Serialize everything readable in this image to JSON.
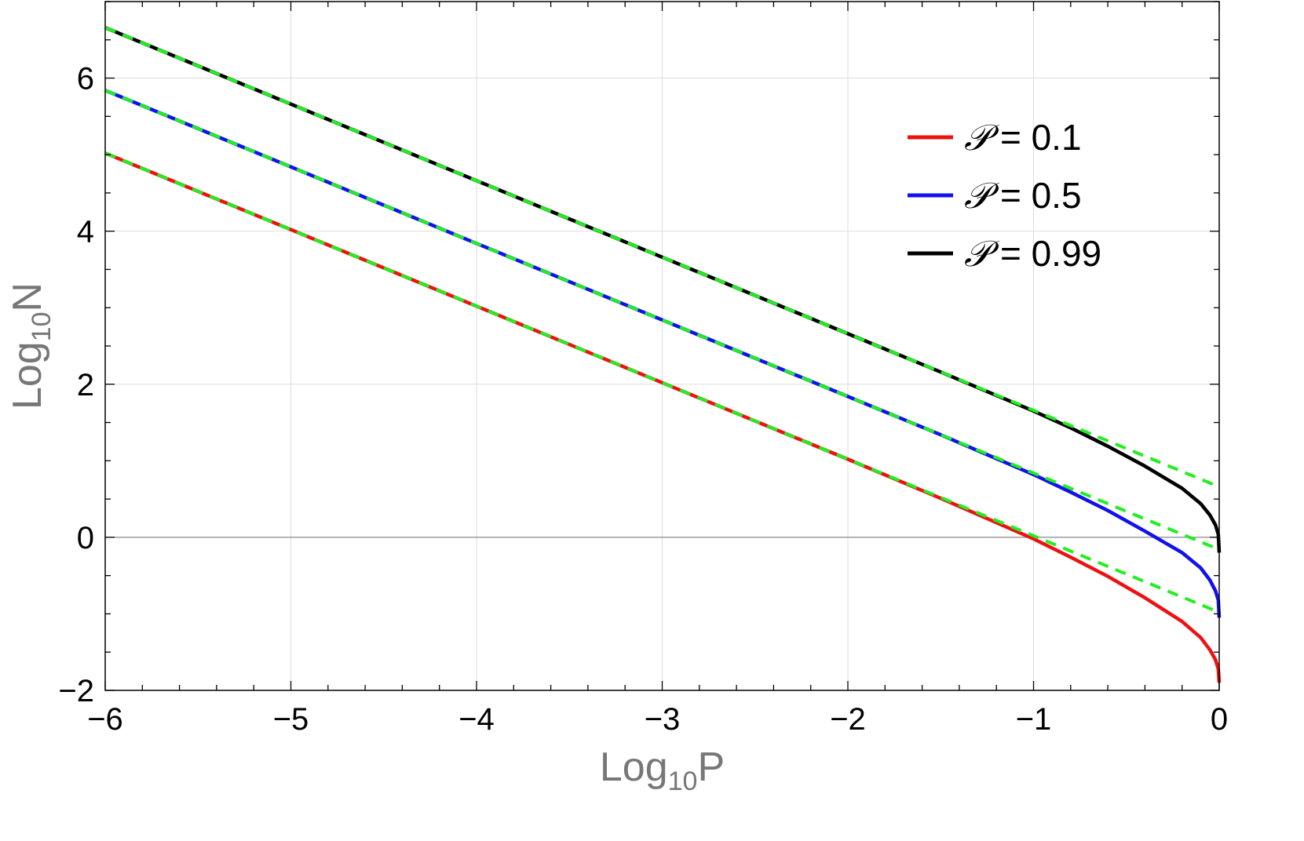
{
  "chart_data": {
    "type": "line",
    "title": "",
    "xlabel": "Log",
    "xlabel_sub": "10",
    "xlabel_var": "P",
    "ylabel": "Log",
    "ylabel_sub": "10",
    "ylabel_var": "N",
    "xlim": [
      -6,
      0
    ],
    "ylim": [
      -2,
      7
    ],
    "x_ticks": [
      -6,
      -5,
      -4,
      -3,
      -2,
      -1,
      0
    ],
    "y_ticks": [
      -2,
      0,
      2,
      4,
      6
    ],
    "x_tick_labels": [
      "−6",
      "−5",
      "−4",
      "−3",
      "−2",
      "−1",
      "0"
    ],
    "y_tick_labels": [
      "−2",
      "0",
      "2",
      "4",
      "6"
    ],
    "grid": true,
    "legend_position": "top-right",
    "series": [
      {
        "name": "𝒫 = 0.1",
        "legend_symbol": "𝒫",
        "legend_value": "= 0.1",
        "color": "#ee1111",
        "style": "solid",
        "x": [
          -6,
          -5,
          -4,
          -3,
          -2,
          -1.5,
          -1,
          -0.8,
          -0.6,
          -0.4,
          -0.2,
          -0.1,
          -0.05,
          -0.02,
          -0.005,
          0
        ],
        "y": [
          5.02,
          4.02,
          3.02,
          2.02,
          1.02,
          0.51,
          -0.02,
          -0.26,
          -0.51,
          -0.79,
          -1.1,
          -1.31,
          -1.47,
          -1.6,
          -1.72,
          -1.9
        ]
      },
      {
        "name": "𝒫 = 0.5",
        "legend_symbol": "𝒫",
        "legend_value": "= 0.5",
        "color": "#1111ee",
        "style": "solid",
        "x": [
          -6,
          -5,
          -4,
          -3,
          -2,
          -1.5,
          -1,
          -0.8,
          -0.6,
          -0.4,
          -0.2,
          -0.1,
          -0.05,
          -0.02,
          -0.005,
          0
        ],
        "y": [
          5.84,
          4.84,
          3.84,
          2.84,
          1.84,
          1.34,
          0.82,
          0.59,
          0.35,
          0.08,
          -0.2,
          -0.4,
          -0.56,
          -0.7,
          -0.82,
          -1.05
        ]
      },
      {
        "name": "𝒫 = 0.99",
        "legend_symbol": "𝒫",
        "legend_value": "= 0.99",
        "color": "#000000",
        "style": "solid",
        "x": [
          -6,
          -5,
          -4,
          -3,
          -2,
          -1.5,
          -1,
          -0.8,
          -0.6,
          -0.4,
          -0.2,
          -0.1,
          -0.05,
          -0.02,
          -0.005,
          0
        ],
        "y": [
          6.66,
          5.66,
          4.66,
          3.66,
          2.66,
          2.16,
          1.65,
          1.43,
          1.19,
          0.93,
          0.64,
          0.44,
          0.29,
          0.16,
          0.04,
          -0.2
        ]
      },
      {
        "name": "",
        "color": "#22ee22",
        "style": "dashed",
        "x": [
          -6,
          0
        ],
        "y": [
          5.02,
          -0.98
        ]
      },
      {
        "name": "",
        "color": "#22ee22",
        "style": "dashed",
        "x": [
          -6,
          0
        ],
        "y": [
          5.84,
          -0.16
        ]
      },
      {
        "name": "",
        "color": "#22ee22",
        "style": "dashed",
        "x": [
          -6,
          0
        ],
        "y": [
          6.66,
          0.66
        ]
      }
    ]
  }
}
